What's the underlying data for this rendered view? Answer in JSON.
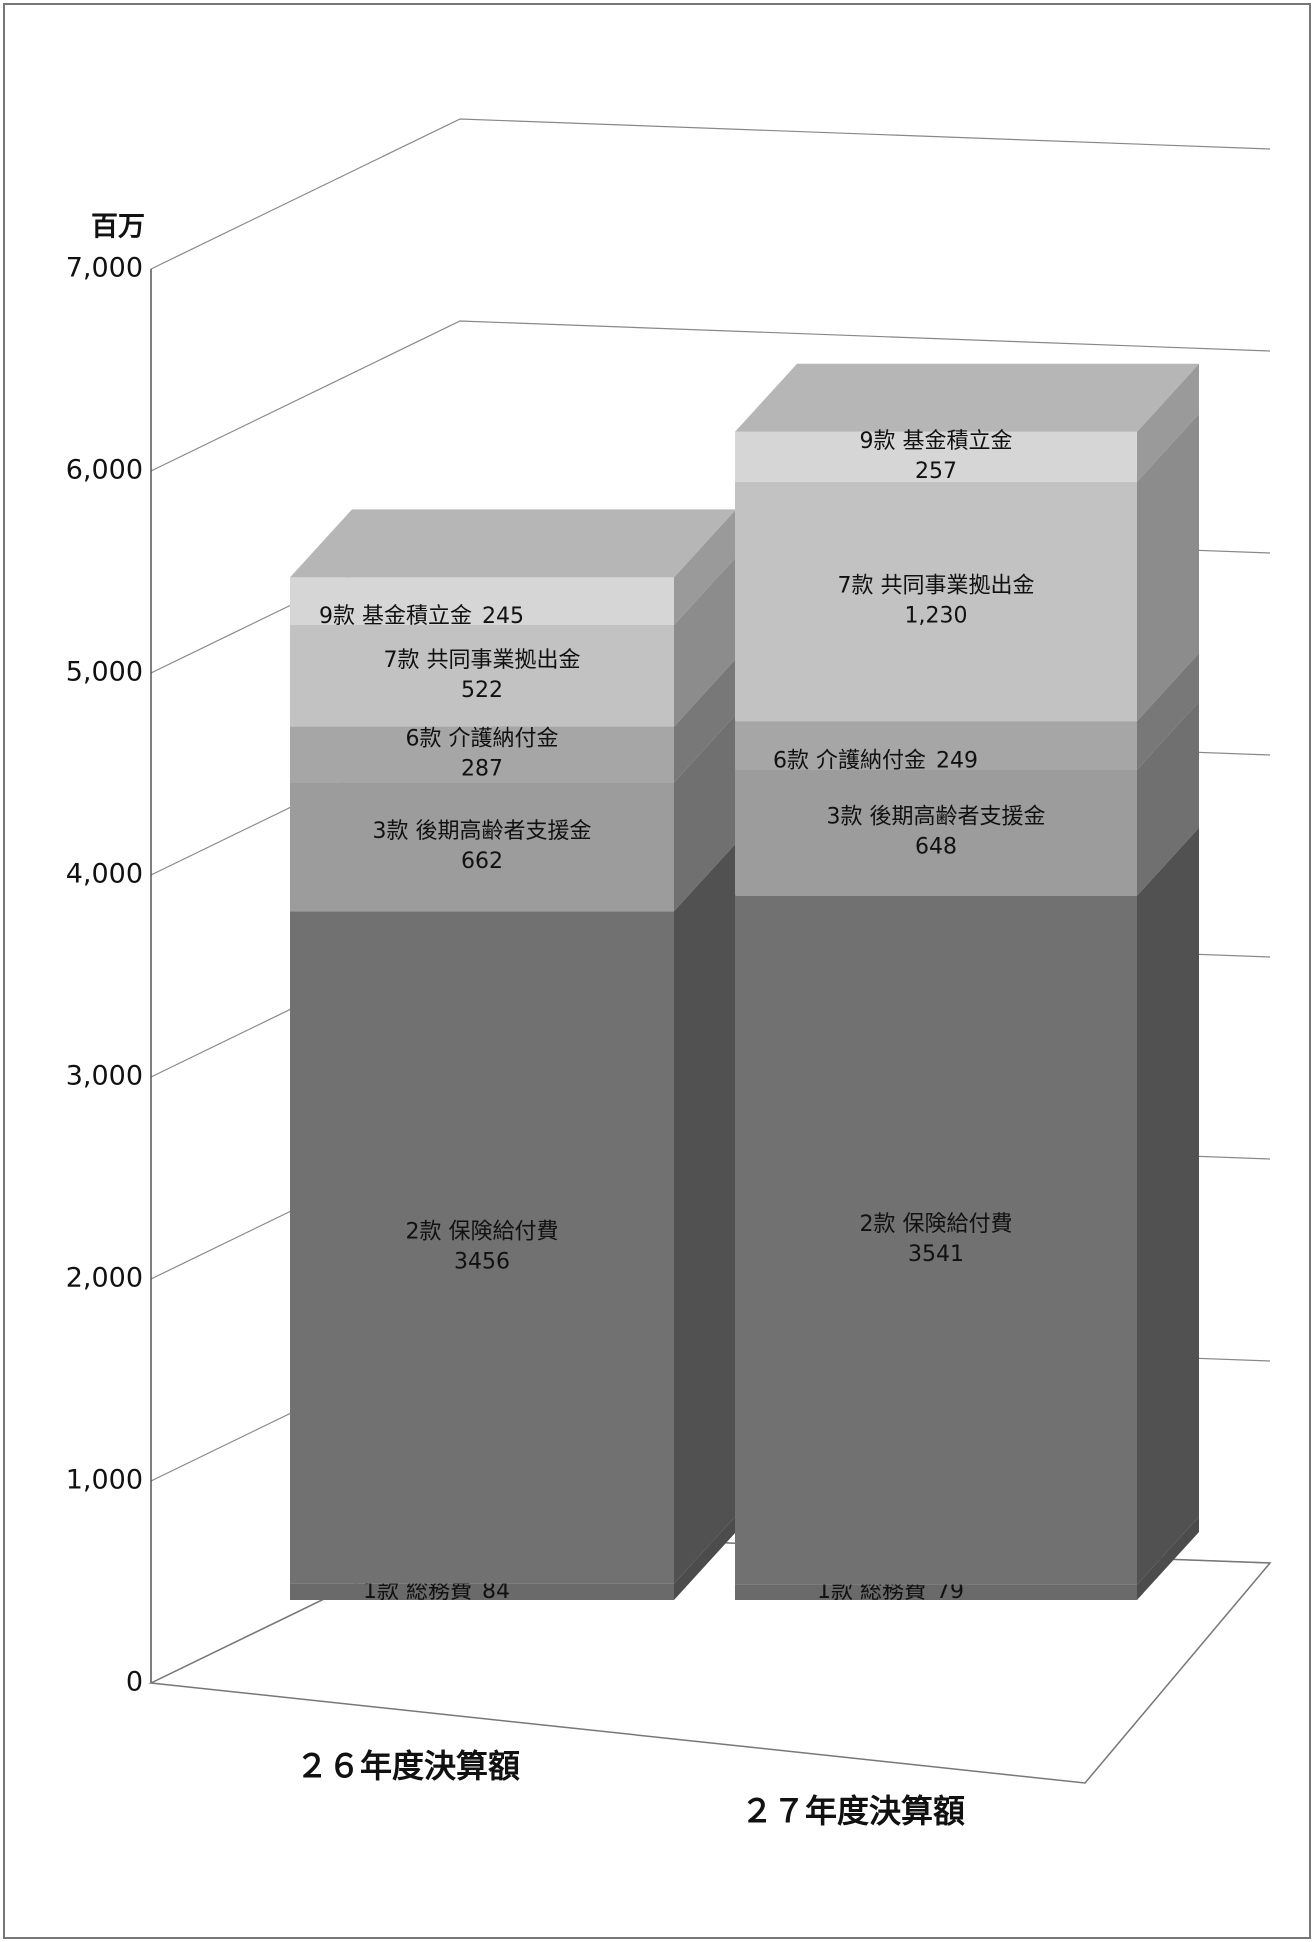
{
  "chart_data": {
    "type": "bar3d_stacked",
    "y_label": "百万",
    "categories": [
      "２６年度決算額",
      "２７年度決算額"
    ],
    "series": [
      {
        "name": "1款 総務費",
        "color": "#6a6a6a",
        "values": [
          84,
          79
        ]
      },
      {
        "name": "2款 保険給付費",
        "color": "#717171",
        "values": [
          3456,
          3541
        ]
      },
      {
        "name": "3款 後期高齢者支援金",
        "color": "#9c9c9c",
        "values": [
          662,
          648
        ]
      },
      {
        "name": "6款 介護納付金",
        "color": "#a6a6a6",
        "values": [
          287,
          249
        ]
      },
      {
        "name": "7款 共同事業拠出金",
        "color": "#c2c2c2",
        "values": [
          522,
          1230
        ],
        "value_labels": [
          "522",
          "1,230"
        ]
      },
      {
        "name": "9款 基金積立金",
        "color": "#d6d6d6",
        "values": [
          245,
          257
        ]
      }
    ],
    "ylim": [
      0,
      7000
    ],
    "yticks": [
      0,
      {
        "value": 1000,
        "label": "1,000"
      },
      {
        "value": 2000,
        "label": "2,000"
      },
      {
        "value": 3000,
        "label": "3,000"
      },
      {
        "value": 4000,
        "label": "4,000"
      },
      {
        "value": 5000,
        "label": "5,000"
      },
      {
        "value": 6000,
        "label": "6,000"
      },
      {
        "value": 7000,
        "label": "7,000"
      }
    ],
    "grid": true
  }
}
